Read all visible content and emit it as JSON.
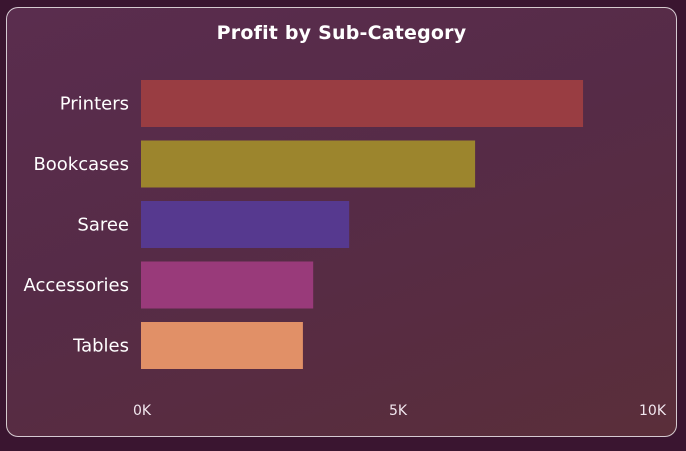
{
  "chart_data": {
    "type": "bar",
    "orientation": "horizontal",
    "title": "Profit by Sub-Category",
    "categories": [
      "Printers",
      "Bookcases",
      "Saree",
      "Accessories",
      "Tables"
    ],
    "values": [
      8600,
      6500,
      4050,
      3350,
      3150
    ],
    "colors": [
      "#993d42",
      "#9c852d",
      "#56398f",
      "#993a7a",
      "#e19067"
    ],
    "xlim": [
      0,
      10000
    ],
    "x_ticks": [
      0,
      5000,
      10000
    ],
    "x_tick_labels": [
      "0K",
      "5K",
      "10K"
    ],
    "xlabel": "",
    "ylabel": "",
    "grid": false,
    "legend": "none"
  }
}
